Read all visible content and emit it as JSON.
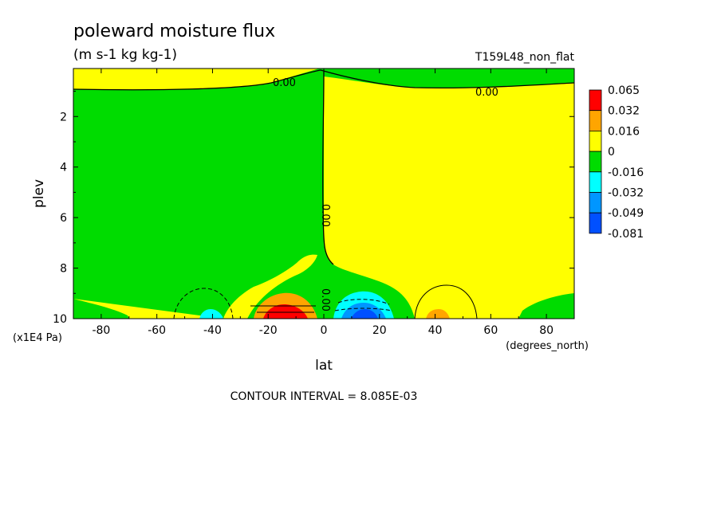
{
  "chart_data": {
    "type": "contour",
    "title": "poleward moisture flux",
    "units": "(m s-1 kg kg-1)",
    "run_label": "T159L48_non_flat",
    "xlabel": "lat",
    "xunits": "(degrees_north)",
    "ylabel": "plev",
    "yunits": "(x1E4 Pa)",
    "xlim": [
      -90,
      90
    ],
    "ylim": [
      10,
      0.1
    ],
    "xticks": [
      -80,
      -60,
      -40,
      -20,
      0,
      20,
      40,
      60,
      80
    ],
    "yticks": [
      2,
      4,
      6,
      8,
      10
    ],
    "contour_interval_text": "CONTOUR INTERVAL = 8.085E-03",
    "zero_contour_labels": [
      "0.00",
      "0.00",
      "0.00",
      "0.00"
    ],
    "legend": {
      "placement": "right",
      "levels": [
        "0.065",
        "0.032",
        "0.016",
        "0",
        "-0.016",
        "-0.032",
        "-0.049",
        "-0.081"
      ],
      "colors": [
        "#ff0000",
        "#ffa500",
        "#ffff00",
        "#00dc00",
        "#00ffff",
        "#0096ff",
        "#0050ff"
      ]
    },
    "features": [
      {
        "name": "positive maximum",
        "lat": -15,
        "plev": 9.9,
        "value": 0.065
      },
      {
        "name": "negative minimum",
        "lat": 12,
        "plev": 9.8,
        "value": -0.081
      },
      {
        "name": "weak negative cell",
        "lat": -40,
        "plev": 9.9,
        "value": -0.02
      },
      {
        "name": "weak positive cell",
        "lat": 42,
        "plev": 9.9,
        "value": 0.02
      }
    ]
  }
}
